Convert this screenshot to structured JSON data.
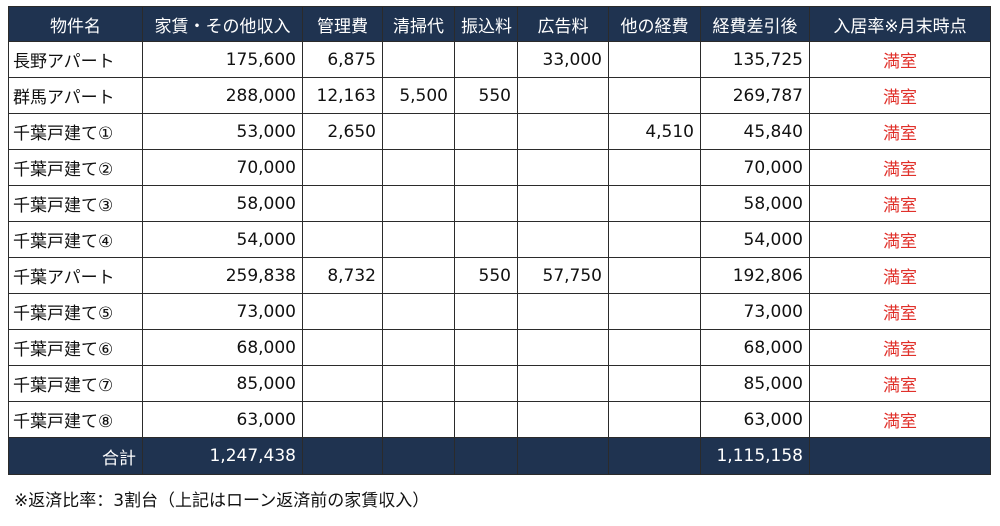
{
  "headers": [
    "物件名",
    "家賃・その他収入",
    "管理費",
    "清掃代",
    "振込料",
    "広告料",
    "他の経費",
    "経費差引後",
    "入居率※月末時点"
  ],
  "rows": [
    {
      "name": "長野アパート",
      "income": "175,600",
      "management": "6,875",
      "cleaning": "",
      "transfer": "",
      "advertising": "33,000",
      "other": "",
      "net": "135,725",
      "status": "満室"
    },
    {
      "name": "群馬アパート",
      "income": "288,000",
      "management": "12,163",
      "cleaning": "5,500",
      "transfer": "550",
      "advertising": "",
      "other": "",
      "net": "269,787",
      "status": "満室"
    },
    {
      "name": "千葉戸建て①",
      "income": "53,000",
      "management": "2,650",
      "cleaning": "",
      "transfer": "",
      "advertising": "",
      "other": "4,510",
      "net": "45,840",
      "status": "満室"
    },
    {
      "name": "千葉戸建て②",
      "income": "70,000",
      "management": "",
      "cleaning": "",
      "transfer": "",
      "advertising": "",
      "other": "",
      "net": "70,000",
      "status": "満室"
    },
    {
      "name": "千葉戸建て③",
      "income": "58,000",
      "management": "",
      "cleaning": "",
      "transfer": "",
      "advertising": "",
      "other": "",
      "net": "58,000",
      "status": "満室"
    },
    {
      "name": "千葉戸建て④",
      "income": "54,000",
      "management": "",
      "cleaning": "",
      "transfer": "",
      "advertising": "",
      "other": "",
      "net": "54,000",
      "status": "満室"
    },
    {
      "name": "千葉アパート",
      "income": "259,838",
      "management": "8,732",
      "cleaning": "",
      "transfer": "550",
      "advertising": "57,750",
      "other": "",
      "net": "192,806",
      "status": "満室"
    },
    {
      "name": "千葉戸建て⑤",
      "income": "73,000",
      "management": "",
      "cleaning": "",
      "transfer": "",
      "advertising": "",
      "other": "",
      "net": "73,000",
      "status": "満室"
    },
    {
      "name": "千葉戸建て⑥",
      "income": "68,000",
      "management": "",
      "cleaning": "",
      "transfer": "",
      "advertising": "",
      "other": "",
      "net": "68,000",
      "status": "満室"
    },
    {
      "name": "千葉戸建て⑦",
      "income": "85,000",
      "management": "",
      "cleaning": "",
      "transfer": "",
      "advertising": "",
      "other": "",
      "net": "85,000",
      "status": "満室"
    },
    {
      "name": "千葉戸建て⑧",
      "income": "63,000",
      "management": "",
      "cleaning": "",
      "transfer": "",
      "advertising": "",
      "other": "",
      "net": "63,000",
      "status": "満室"
    }
  ],
  "totals": {
    "label": "合計",
    "income": "1,247,438",
    "net": "1,115,158"
  },
  "note": "※返済比率：3割台（上記はローン返済前の家賃収入）",
  "colors": {
    "header_bg": "#1f3350",
    "header_text": "#ffffff",
    "status_text": "#e0302a"
  }
}
